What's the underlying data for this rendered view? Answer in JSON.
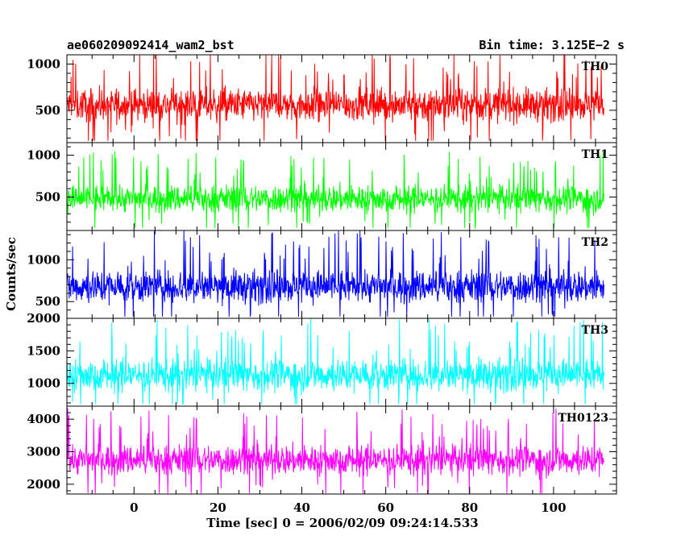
{
  "header": {
    "title": "ae060209092414_wam2_bst",
    "bin_time": "Bin time: 3.125E−2 s"
  },
  "chart_data": {
    "type": "line",
    "xlabel": "Time [sec] 0 = 2006/02/09 09:24:14.533",
    "ylabel": "Counts/sec",
    "xlim": [
      -16,
      115
    ],
    "x_ticks": [
      0,
      20,
      40,
      60,
      80,
      100
    ],
    "x_tick_labels": [
      "0",
      "20",
      "40",
      "60",
      "80",
      "100"
    ],
    "x_range_data": [
      -16,
      112
    ],
    "grid": false,
    "panels": [
      {
        "name": "TH0",
        "color": "#ff0000",
        "ylim": [
          150,
          1100
        ],
        "y_ticks": [
          500,
          1000
        ],
        "y_tick_labels": [
          "500",
          "1000"
        ],
        "mean": 560,
        "noise": 160,
        "ymin": 170,
        "ymax": 1100
      },
      {
        "name": "TH1",
        "color": "#00ff00",
        "ylim": [
          100,
          1150
        ],
        "y_ticks": [
          500,
          1000
        ],
        "y_tick_labels": [
          "500",
          "1000"
        ],
        "mean": 480,
        "noise": 150,
        "ymin": 130,
        "ymax": 1120
      },
      {
        "name": "TH2",
        "color": "#0000ff",
        "ylim": [
          300,
          1350
        ],
        "y_ticks": [
          500,
          1000
        ],
        "y_tick_labels": [
          "500",
          "1000"
        ],
        "mean": 680,
        "noise": 180,
        "ymin": 320,
        "ymax": 1350
      },
      {
        "name": "TH3",
        "color": "#00ffff",
        "ylim": [
          650,
          2000
        ],
        "y_ticks": [
          1000,
          1500,
          2000
        ],
        "y_tick_labels": [
          "1000",
          "1500",
          "2000"
        ],
        "mean": 1130,
        "noise": 230,
        "ymin": 680,
        "ymax": 2000
      },
      {
        "name": "TH0123",
        "color": "#ff00ff",
        "ylim": [
          1700,
          4400
        ],
        "y_ticks": [
          2000,
          3000,
          4000
        ],
        "y_tick_labels": [
          "2000",
          "3000",
          "4000"
        ],
        "mean": 2750,
        "noise": 420,
        "ymin": 1720,
        "ymax": 4350
      }
    ]
  }
}
